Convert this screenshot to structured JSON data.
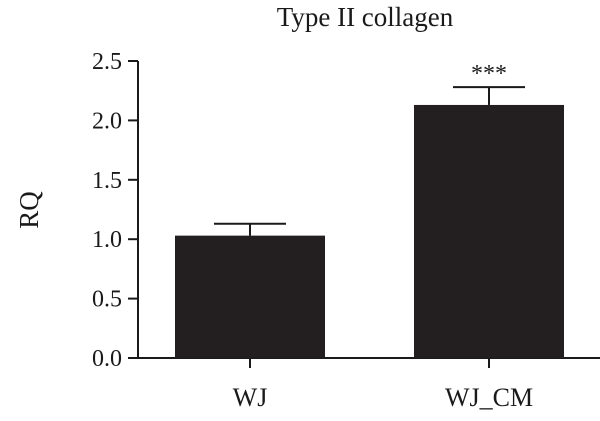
{
  "chart_data": {
    "type": "bar",
    "title": "Type II collagen",
    "xlabel": "",
    "ylabel": "RQ",
    "categories": [
      "WJ",
      "WJ_CM"
    ],
    "values": [
      1.03,
      2.13
    ],
    "errors": [
      0.1,
      0.15
    ],
    "annotations": [
      "",
      "***"
    ],
    "ylim": [
      0,
      2.5
    ],
    "yticks": [
      "0.0",
      "0.5",
      "1.0",
      "1.5",
      "2.0",
      "2.5"
    ],
    "grid": false,
    "bar_color": "#231f20"
  }
}
